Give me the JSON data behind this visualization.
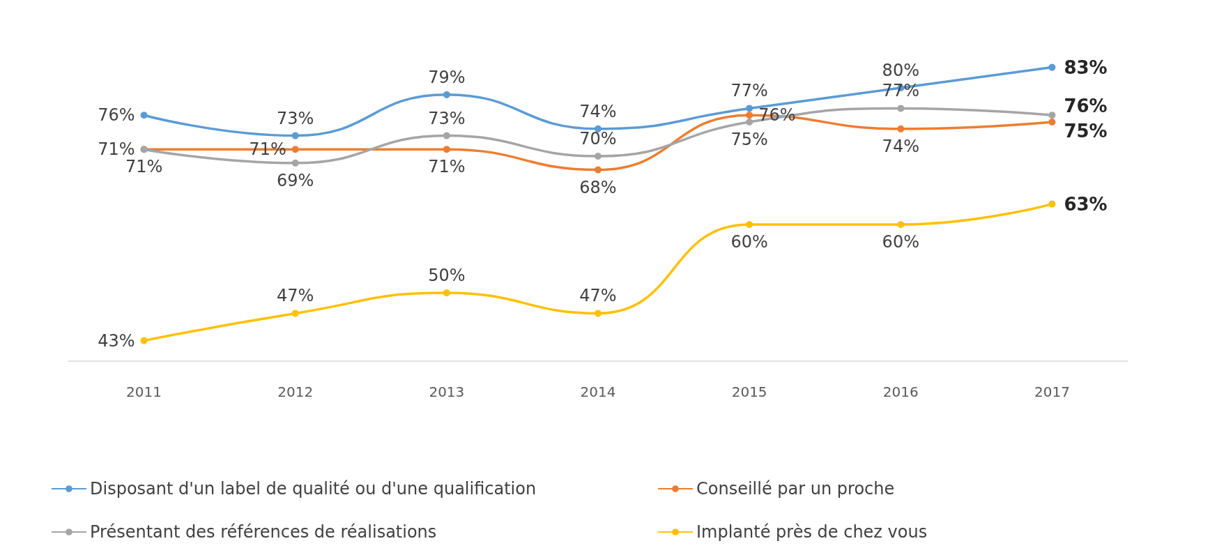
{
  "chart_data": {
    "type": "line",
    "categories": [
      "2011",
      "2012",
      "2013",
      "2014",
      "2015",
      "2016",
      "2017"
    ],
    "series": [
      {
        "name": "Disposant d'un label de qualité ou d'une qualification",
        "color": "#5b9bd5",
        "values": [
          76,
          73,
          79,
          74,
          77,
          80,
          83
        ],
        "value_labels": [
          "76%",
          "73%",
          "79%",
          "74%",
          "77%",
          "80%",
          "83%"
        ]
      },
      {
        "name": "Conseillé par un proche",
        "color": "#ed7d31",
        "values": [
          71,
          71,
          71,
          68,
          76,
          74,
          75
        ],
        "value_labels": [
          "71%",
          "71%",
          "71%",
          "68%",
          "76%",
          "74%",
          "75%"
        ]
      },
      {
        "name": "Présentant des références de réalisations",
        "color": "#a5a5a5",
        "values": [
          71,
          69,
          73,
          70,
          75,
          77,
          76
        ],
        "value_labels": [
          "71%",
          "69%",
          "73%",
          "70%",
          "75%",
          "77%",
          "76%"
        ]
      },
      {
        "name": "Implanté près de chez vous",
        "color": "#ffc000",
        "values": [
          43,
          47,
          50,
          47,
          60,
          60,
          63
        ],
        "value_labels": [
          "43%",
          "47%",
          "50%",
          "47%",
          "60%",
          "60%",
          "63%"
        ]
      }
    ],
    "marker": "circle",
    "grid": false,
    "legend": "bottom"
  }
}
